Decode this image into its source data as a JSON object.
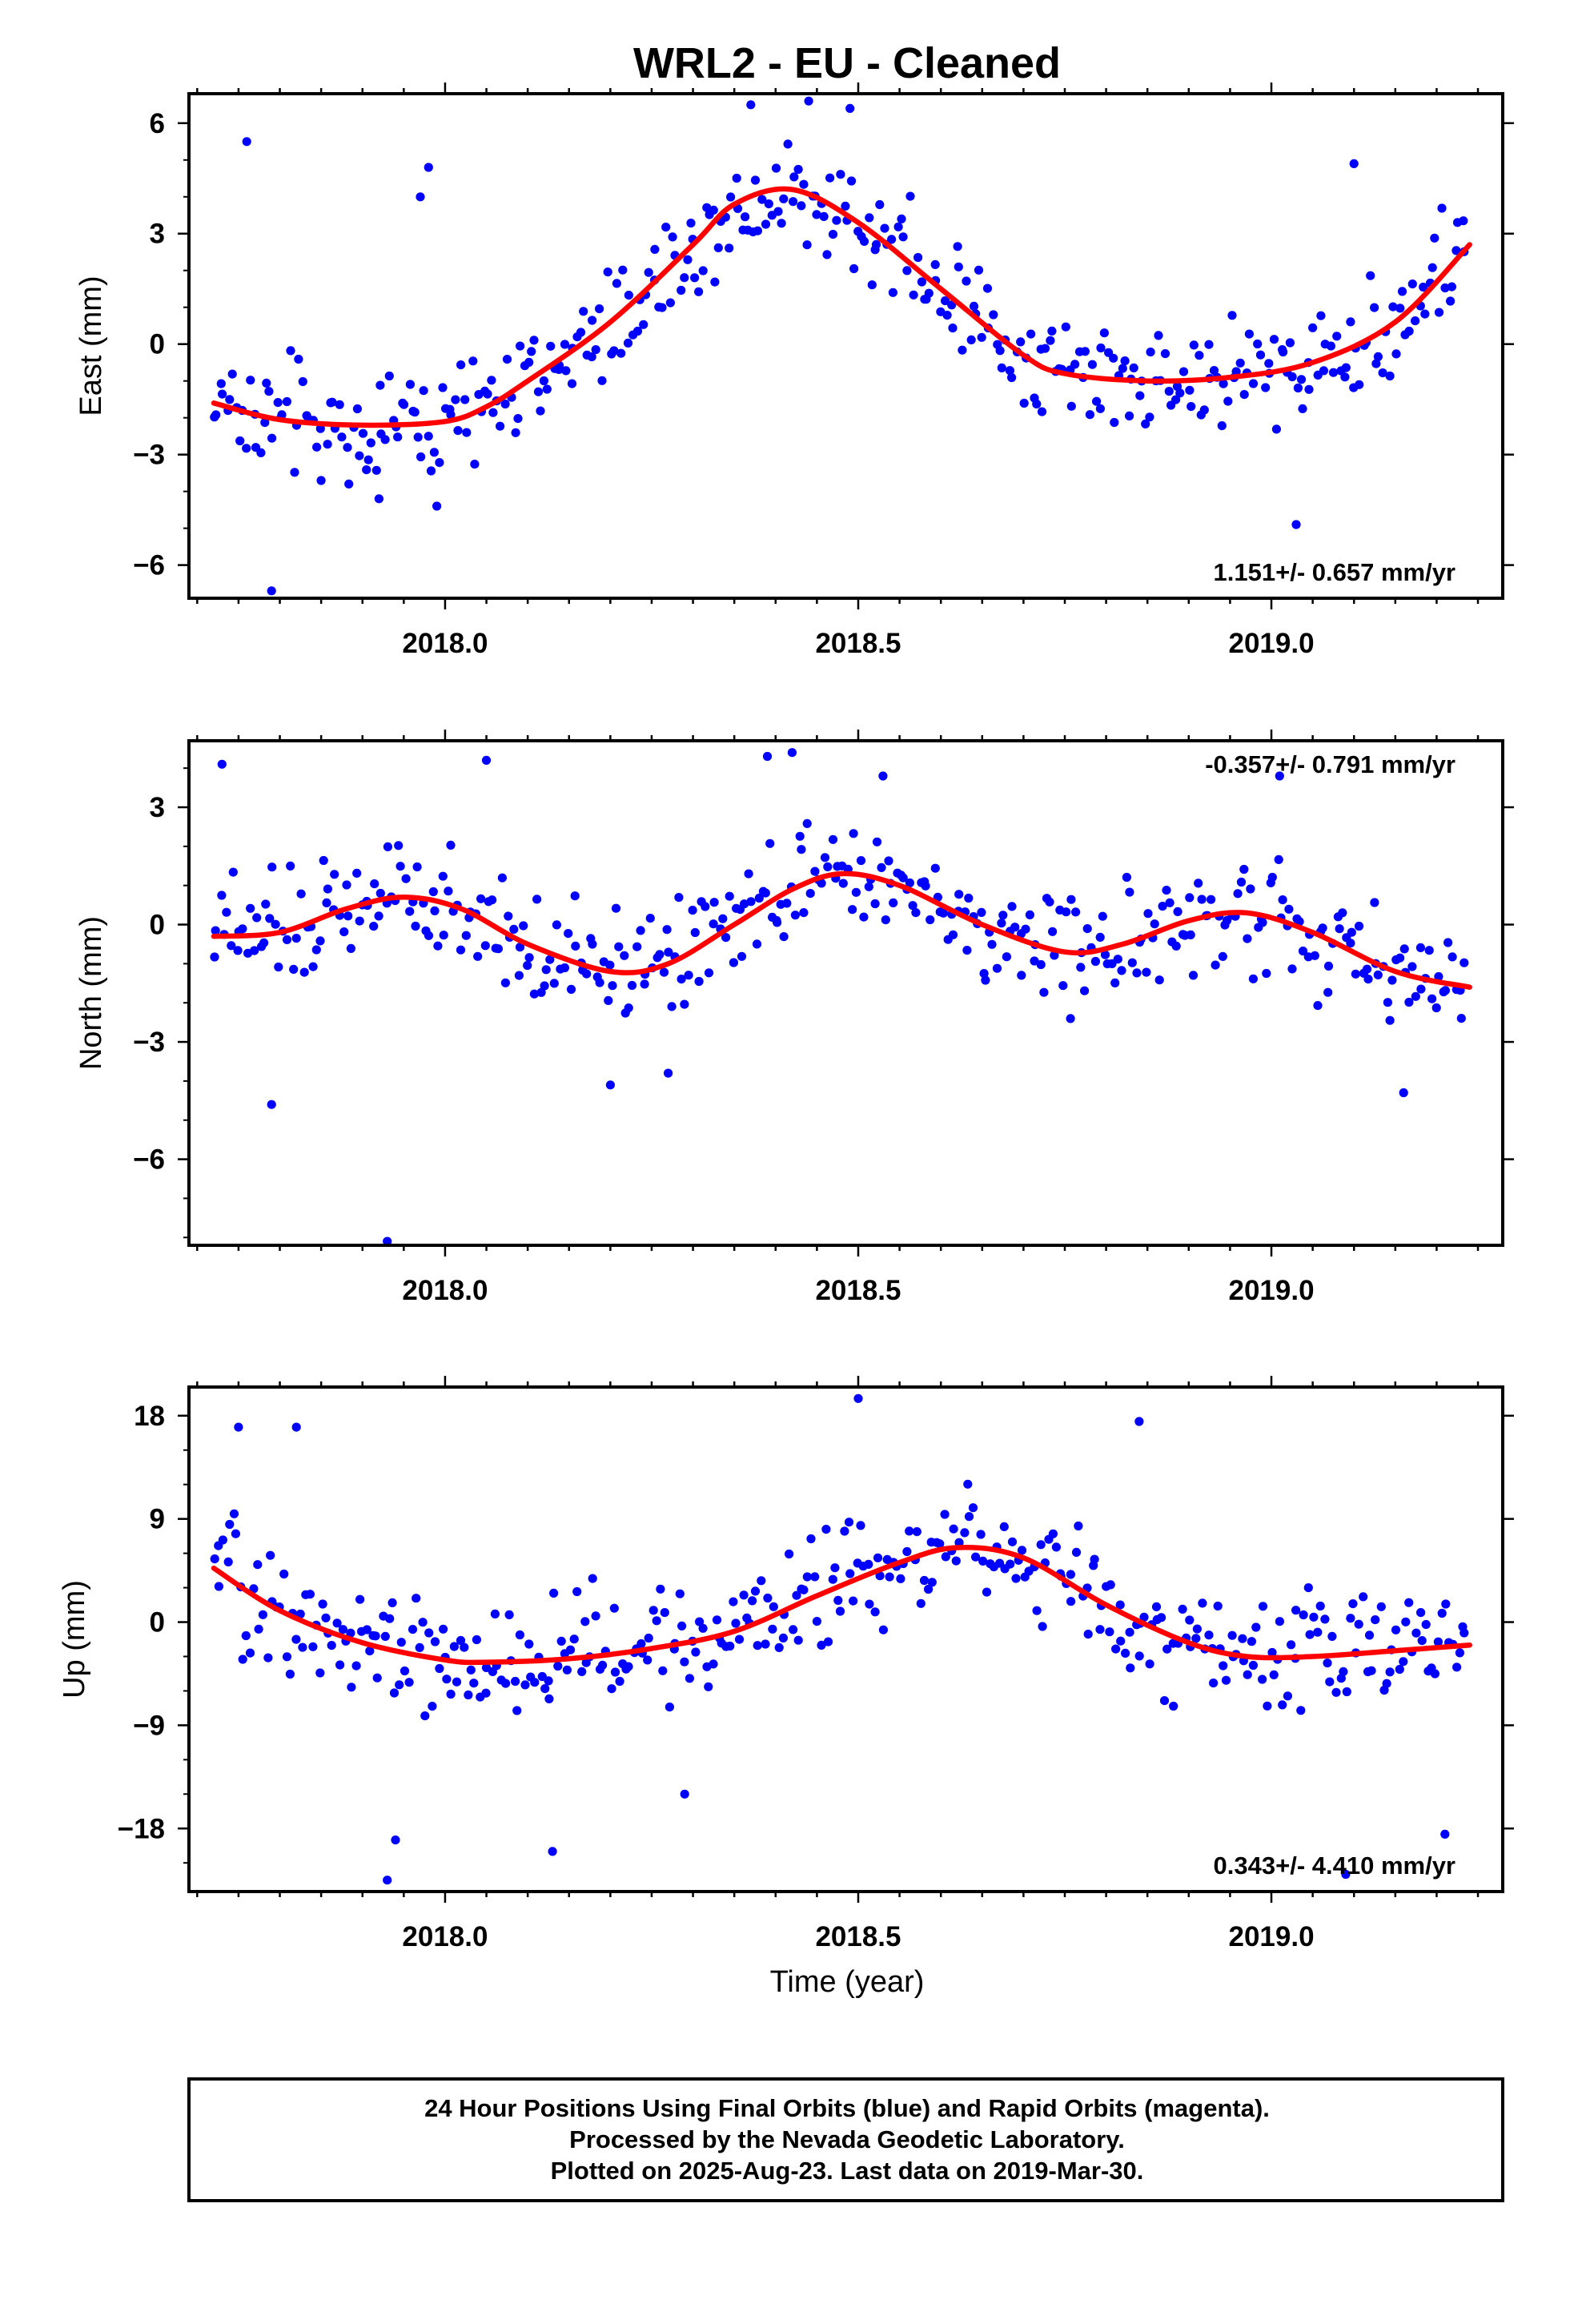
{
  "title": "WRL2  - EU - Cleaned",
  "xlabel": "Time (year)",
  "x_tick_labels": [
    "2018.0",
    "2018.5",
    "2019.0"
  ],
  "colors": {
    "points": "#0000ff",
    "fit": "#ff0000",
    "frame": "#000000"
  },
  "footer": {
    "line1": "24 Hour Positions Using Final Orbits (blue) and Rapid Orbits (magenta).",
    "line2": "Processed by the Nevada Geodetic Laboratory.",
    "line3": "Plotted on 2025-Aug-23. Last data on 2019-Mar-30."
  },
  "chart_data": [
    {
      "type": "scatter",
      "ylabel": "East (mm)",
      "rate_label": "1.151+/- 0.657 mm/yr",
      "rate_position": "bottom-right",
      "xlim": [
        2017.69,
        2019.28
      ],
      "ylim": [
        -6.9,
        6.8
      ],
      "x_ticks": [
        2018.0,
        2018.5,
        2019.0
      ],
      "y_ticks": [
        -6,
        -3,
        0,
        3,
        6
      ],
      "y_tick_labels": [
        "−6",
        "−3",
        "0",
        "3",
        "6"
      ],
      "grid": false,
      "series": [
        {
          "type": "scatter",
          "color": "#0000ff",
          "trend": [
            [
              2017.72,
              -1.6
            ],
            [
              2017.8,
              -2.05
            ],
            [
              2017.9,
              -2.2
            ],
            [
              2018.0,
              -2.1
            ],
            [
              2018.05,
              -1.7
            ],
            [
              2018.1,
              -1.0
            ],
            [
              2018.2,
              0.6
            ],
            [
              2018.3,
              2.7
            ],
            [
              2018.35,
              3.8
            ],
            [
              2018.42,
              4.2
            ],
            [
              2018.5,
              3.3
            ],
            [
              2018.6,
              1.5
            ],
            [
              2018.7,
              -0.3
            ],
            [
              2018.75,
              -0.8
            ],
            [
              2018.85,
              -1.0
            ],
            [
              2018.95,
              -0.9
            ],
            [
              2019.05,
              -0.5
            ],
            [
              2019.15,
              0.6
            ],
            [
              2019.24,
              2.7
            ]
          ],
          "scatter": 1.3,
          "outliers": [
            [
              2017.76,
              5.5
            ],
            [
              2017.79,
              -6.7
            ],
            [
              2017.92,
              -4.2
            ],
            [
              2017.97,
              4.0
            ],
            [
              2017.98,
              4.8
            ],
            [
              2017.99,
              -4.4
            ],
            [
              2018.37,
              6.5
            ],
            [
              2018.44,
              6.6
            ],
            [
              2018.49,
              6.4
            ],
            [
              2019.1,
              4.9
            ],
            [
              2019.03,
              -4.9
            ]
          ]
        },
        {
          "type": "line",
          "color": "#ff0000",
          "x": [
            2017.72,
            2017.8,
            2017.9,
            2018.0,
            2018.05,
            2018.1,
            2018.2,
            2018.3,
            2018.35,
            2018.42,
            2018.5,
            2018.6,
            2018.7,
            2018.75,
            2018.85,
            2018.95,
            2019.05,
            2019.15,
            2019.24
          ],
          "y": [
            -1.6,
            -2.05,
            -2.2,
            -2.1,
            -1.7,
            -1.0,
            0.6,
            2.7,
            3.8,
            4.2,
            3.3,
            1.5,
            -0.3,
            -0.8,
            -1.0,
            -0.9,
            -0.5,
            0.6,
            2.7
          ]
        }
      ]
    },
    {
      "type": "scatter",
      "ylabel": "North (mm)",
      "rate_label": "-0.357+/- 0.791 mm/yr",
      "rate_position": "top-right",
      "xlim": [
        2017.69,
        2019.28
      ],
      "ylim": [
        -8.2,
        4.7
      ],
      "x_ticks": [
        2018.0,
        2018.5,
        2019.0
      ],
      "y_ticks": [
        -6,
        -3,
        0,
        3
      ],
      "y_tick_labels": [
        "−6",
        "−3",
        "0",
        "3"
      ],
      "grid": false,
      "series": [
        {
          "type": "scatter",
          "color": "#0000ff",
          "trend": [
            [
              2017.72,
              -0.3
            ],
            [
              2017.8,
              -0.2
            ],
            [
              2017.88,
              0.4
            ],
            [
              2017.95,
              0.7
            ],
            [
              2018.02,
              0.4
            ],
            [
              2018.1,
              -0.5
            ],
            [
              2018.2,
              -1.2
            ],
            [
              2018.27,
              -1.0
            ],
            [
              2018.35,
              0.0
            ],
            [
              2018.42,
              0.9
            ],
            [
              2018.48,
              1.3
            ],
            [
              2018.55,
              1.0
            ],
            [
              2018.65,
              0.0
            ],
            [
              2018.75,
              -0.7
            ],
            [
              2018.82,
              -0.5
            ],
            [
              2018.9,
              0.1
            ],
            [
              2018.97,
              0.3
            ],
            [
              2019.05,
              -0.2
            ],
            [
              2019.15,
              -1.2
            ],
            [
              2019.24,
              -1.6
            ]
          ],
          "scatter": 1.15,
          "outliers": [
            [
              2017.73,
              4.1
            ],
            [
              2017.79,
              -4.6
            ],
            [
              2017.93,
              -8.1
            ],
            [
              2018.05,
              4.2
            ],
            [
              2018.39,
              4.3
            ],
            [
              2018.42,
              4.4
            ],
            [
              2018.2,
              -4.1
            ],
            [
              2018.27,
              -3.8
            ],
            [
              2019.16,
              -4.3
            ],
            [
              2019.01,
              3.8
            ],
            [
              2018.53,
              3.8
            ]
          ]
        },
        {
          "type": "line",
          "color": "#ff0000",
          "x": [
            2017.72,
            2017.8,
            2017.88,
            2017.95,
            2018.02,
            2018.1,
            2018.2,
            2018.27,
            2018.35,
            2018.42,
            2018.48,
            2018.55,
            2018.65,
            2018.75,
            2018.82,
            2018.9,
            2018.97,
            2019.05,
            2019.15,
            2019.24
          ],
          "y": [
            -0.3,
            -0.2,
            0.4,
            0.7,
            0.4,
            -0.5,
            -1.2,
            -1.0,
            0.0,
            0.9,
            1.3,
            1.0,
            0.0,
            -0.7,
            -0.5,
            0.1,
            0.3,
            -0.2,
            -1.2,
            -1.6
          ]
        }
      ]
    },
    {
      "type": "scatter",
      "ylabel": "Up (mm)",
      "rate_label": "0.343+/- 4.410 mm/yr",
      "rate_position": "bottom-right",
      "xlim": [
        2017.69,
        2019.28
      ],
      "ylim": [
        -23.5,
        20.5
      ],
      "x_ticks": [
        2018.0,
        2018.5,
        2019.0
      ],
      "y_ticks": [
        -18,
        -9,
        0,
        9,
        18
      ],
      "y_tick_labels": [
        "−18",
        "−9",
        "0",
        "9",
        "18"
      ],
      "grid": false,
      "series": [
        {
          "type": "scatter",
          "color": "#0000ff",
          "trend": [
            [
              2017.72,
              4.7
            ],
            [
              2017.8,
              1.0
            ],
            [
              2017.9,
              -1.8
            ],
            [
              2018.0,
              -3.3
            ],
            [
              2018.05,
              -3.5
            ],
            [
              2018.15,
              -3.2
            ],
            [
              2018.25,
              -2.3
            ],
            [
              2018.35,
              -0.8
            ],
            [
              2018.45,
              2.3
            ],
            [
              2018.55,
              5.2
            ],
            [
              2018.62,
              6.5
            ],
            [
              2018.7,
              5.6
            ],
            [
              2018.8,
              1.5
            ],
            [
              2018.9,
              -1.8
            ],
            [
              2018.97,
              -3.0
            ],
            [
              2019.05,
              -3.0
            ],
            [
              2019.15,
              -2.5
            ],
            [
              2019.24,
              -2.0
            ]
          ],
          "scatter": 4.6,
          "outliers": [
            [
              2017.75,
              17.0
            ],
            [
              2017.82,
              17.0
            ],
            [
              2017.93,
              -22.5
            ],
            [
              2018.5,
              19.5
            ],
            [
              2018.84,
              17.5
            ],
            [
              2017.94,
              -19.0
            ],
            [
              2018.13,
              -20.0
            ],
            [
              2019.21,
              -18.5
            ],
            [
              2019.09,
              -22.0
            ],
            [
              2018.29,
              -15.0
            ]
          ]
        },
        {
          "type": "line",
          "color": "#ff0000",
          "x": [
            2017.72,
            2017.8,
            2017.9,
            2018.0,
            2018.05,
            2018.15,
            2018.25,
            2018.35,
            2018.45,
            2018.55,
            2018.62,
            2018.7,
            2018.8,
            2018.9,
            2018.97,
            2019.05,
            2019.15,
            2019.24
          ],
          "y": [
            4.7,
            1.0,
            -1.8,
            -3.3,
            -3.5,
            -3.2,
            -2.3,
            -0.8,
            2.3,
            5.2,
            6.5,
            5.6,
            1.5,
            -1.8,
            -3.0,
            -3.0,
            -2.5,
            -2.0
          ]
        }
      ]
    }
  ]
}
